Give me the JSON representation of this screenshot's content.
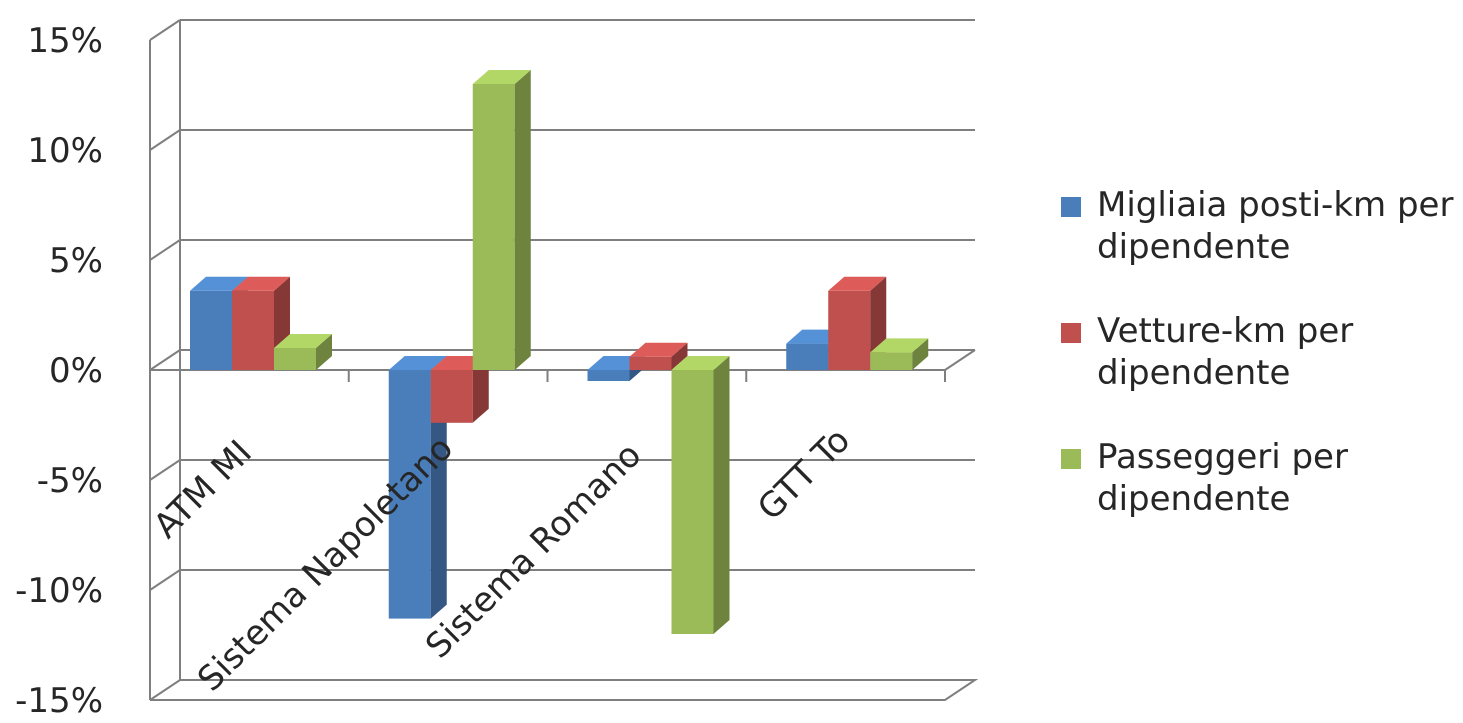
{
  "chart_data": {
    "type": "bar",
    "categories": [
      "ATM MI",
      "Sistema Napoletano",
      "Sistema Romano",
      "GTT To"
    ],
    "series": [
      {
        "name": "Migliaia posti-km per dipendente",
        "color": "#4a7ebb",
        "values": [
          3.6,
          -11.3,
          -0.5,
          1.2
        ]
      },
      {
        "name": "Vetture-km per dipendente",
        "color": "#c0504d",
        "values": [
          3.6,
          -2.4,
          0.6,
          3.6
        ]
      },
      {
        "name": "Passeggeri per dipendente",
        "color": "#9bbb59",
        "values": [
          1.0,
          13.0,
          -12.0,
          0.8
        ]
      }
    ],
    "y_ticks": [
      "15%",
      "10%",
      "5%",
      "0%",
      "-5%",
      "-10%",
      "-15%"
    ],
    "ylim": [
      -15,
      15
    ],
    "title": "",
    "xlabel": "",
    "ylabel": "",
    "legend_position": "right",
    "grid": true,
    "style": "3d-clustered-column"
  }
}
